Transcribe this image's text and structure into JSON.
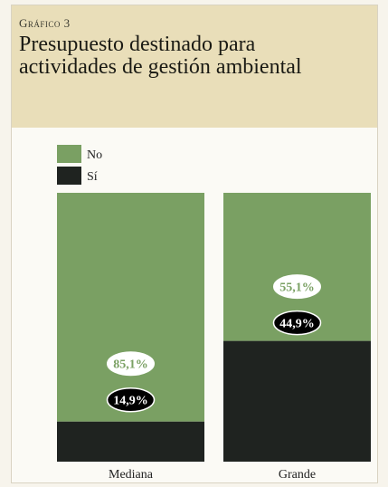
{
  "header": {
    "kicker": "Gráfico 3",
    "title": "Presupuesto destinado para actividades de gestión ambiental"
  },
  "colors": {
    "no": "#7aa063",
    "si": "#1f2320",
    "header_bg": "#e9deb9"
  },
  "chart_data": {
    "type": "bar",
    "stacked": true,
    "categories": [
      "Mediana",
      "Grande"
    ],
    "series": [
      {
        "name": "Sí",
        "values": [
          14.9,
          44.9
        ],
        "labels": [
          "14,9%",
          "44,9%"
        ]
      },
      {
        "name": "No",
        "values": [
          85.1,
          55.1
        ],
        "labels": [
          "85,1%",
          "55,1%"
        ]
      }
    ],
    "ylim": [
      0,
      100
    ],
    "legend": {
      "placement": "top-left",
      "entries": [
        "No",
        "Sí"
      ]
    },
    "grid": false
  }
}
